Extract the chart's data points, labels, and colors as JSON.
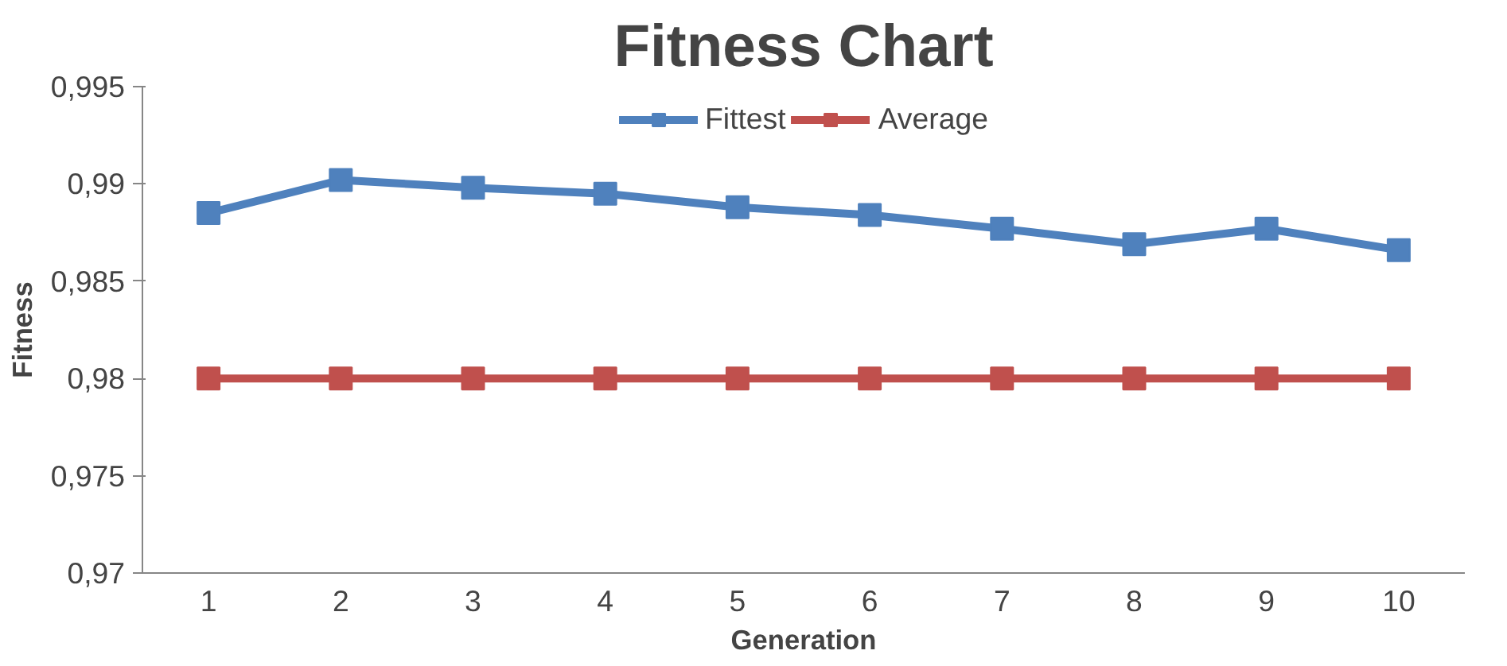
{
  "chart_data": {
    "type": "line",
    "title": "Fitness Chart",
    "xlabel": "Generation",
    "ylabel": "Fitness",
    "categories": [
      "1",
      "2",
      "3",
      "4",
      "5",
      "6",
      "7",
      "8",
      "9",
      "10"
    ],
    "series": [
      {
        "name": "Fittest",
        "color": "#4f81bd",
        "values": [
          0.9885,
          0.9902,
          0.9898,
          0.9895,
          0.9888,
          0.9884,
          0.9877,
          0.9869,
          0.9877,
          0.9866
        ]
      },
      {
        "name": "Average",
        "color": "#c0504d",
        "values": [
          0.98,
          0.98,
          0.98,
          0.98,
          0.98,
          0.98,
          0.98,
          0.98,
          0.98,
          0.98
        ]
      }
    ],
    "ylim": [
      0.97,
      0.995
    ],
    "yticks": [
      {
        "value": 0.97,
        "label": "0,97"
      },
      {
        "value": 0.975,
        "label": "0,975"
      },
      {
        "value": 0.98,
        "label": "0,98"
      },
      {
        "value": 0.985,
        "label": "0,985"
      },
      {
        "value": 0.99,
        "label": "0,99"
      },
      {
        "value": 0.995,
        "label": "0,995"
      }
    ],
    "grid": false,
    "legend": "top",
    "marker": "square",
    "line_style": "solid"
  }
}
